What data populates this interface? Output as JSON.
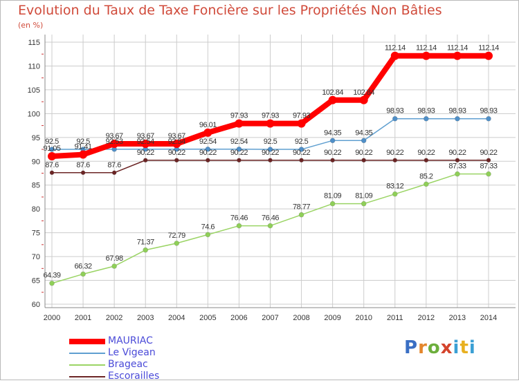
{
  "title": "Evolution du Taux de Taxe Foncière sur les Propriétés Non Bâties",
  "subtitle": "(en %)",
  "brand": "Proxiti",
  "colors": {
    "MAURIAC": "#ff0000",
    "Le Vigean": "#5f9fd0",
    "Brageac": "#9ad464",
    "Escorailles": "#6b2424",
    "grid": "#cccccc",
    "axis": "#888888"
  },
  "chart_data": {
    "type": "line",
    "title": "Evolution du Taux de Taxe Foncière sur les Propriétés Non Bâties",
    "ylabel": "(en %)",
    "xlabel": "",
    "x": [
      2000,
      2001,
      2002,
      2003,
      2004,
      2005,
      2006,
      2007,
      2008,
      2009,
      2010,
      2011,
      2012,
      2013,
      2014
    ],
    "ylim": [
      60,
      115
    ],
    "yticks": [
      60,
      65,
      70,
      75,
      80,
      85,
      90,
      95,
      100,
      105,
      110,
      115
    ],
    "series": [
      {
        "name": "MAURIAC",
        "values": [
          91.05,
          91.41,
          93.67,
          93.67,
          93.67,
          96.01,
          97.93,
          97.93,
          97.93,
          102.84,
          102.84,
          112.14,
          112.14,
          112.14,
          112.14
        ],
        "labels": [
          "91.05",
          "91.41",
          "93.67",
          "93.67",
          "93.67",
          "96.01",
          "97.93",
          "97.93",
          "97.93",
          "102.84",
          "102.84",
          "112.14",
          "112.14",
          "112.14",
          "112.14"
        ]
      },
      {
        "name": "Le Vigean",
        "values": [
          92.5,
          92.5,
          92.53,
          92.54,
          92.54,
          92.54,
          92.54,
          92.5,
          92.5,
          94.35,
          94.35,
          98.93,
          98.93,
          98.93,
          98.93
        ],
        "labels": [
          "92.5",
          "92.5",
          "92.53",
          "92.54",
          "92.54",
          "92.54",
          "92.54",
          "92.5",
          "92.5",
          "94.35",
          "94.35",
          "98.93",
          "98.93",
          "98.93",
          "98.93"
        ]
      },
      {
        "name": "Brageac",
        "values": [
          64.39,
          66.32,
          67.98,
          71.37,
          72.79,
          74.6,
          76.46,
          76.46,
          78.77,
          81.09,
          81.09,
          83.12,
          85.2,
          87.33,
          87.33
        ],
        "labels": [
          "64.39",
          "66.32",
          "67.98",
          "71.37",
          "72.79",
          "74.6",
          "76.46",
          "76.46",
          "78.77",
          "81.09",
          "81.09",
          "83.12",
          "85.2",
          "87.33",
          "87.33"
        ]
      },
      {
        "name": "Escorailles",
        "values": [
          87.6,
          87.6,
          87.6,
          90.22,
          90.22,
          90.22,
          90.22,
          90.22,
          90.22,
          90.22,
          90.22,
          90.22,
          90.22,
          90.22,
          90.22
        ],
        "labels": [
          "87.6",
          "87.6",
          "87.6",
          "90.22",
          "90.22",
          "90.22",
          "90.22",
          "90.22",
          "90.22",
          "90.22",
          "90.22",
          "90.22",
          "90.22",
          "90.22",
          "90.22"
        ]
      }
    ],
    "legend": [
      "MAURIAC",
      "Le Vigean",
      "Brageac",
      "Escorailles"
    ],
    "legend_position": "bottom-left",
    "grid": true
  }
}
